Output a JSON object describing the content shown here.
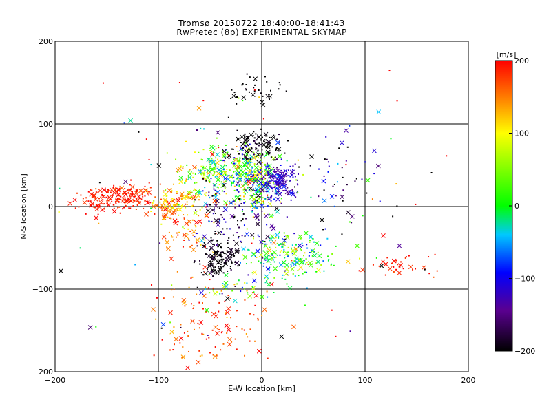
{
  "title_line1": "Tromsø 20150722 18:40:00–18:41:43",
  "title_line2": "RwPretec (8p) EXPERIMENTAL SKYMAP",
  "chart_data": {
    "type": "scatter",
    "xlabel": "E-W location [km]",
    "ylabel": "N-S location [km]",
    "xlim": [
      -200,
      200
    ],
    "ylim": [
      -200,
      200
    ],
    "x_ticks": [
      -200,
      -100,
      0,
      100,
      200
    ],
    "y_ticks": [
      -200,
      -100,
      0,
      100,
      200
    ],
    "x_tick_labels": [
      "−200",
      "−100",
      "0",
      "100",
      "200"
    ],
    "y_tick_labels": [
      "−200",
      "−100",
      "0",
      "100",
      "200"
    ],
    "grid": true,
    "colorbar": {
      "unit_label": "[m/s]",
      "min": -200,
      "max": 200,
      "ticks": [
        -200,
        -100,
        0,
        100,
        200
      ],
      "tick_labels": [
        "−200",
        "−100",
        "0",
        "100",
        "200"
      ],
      "colormap": "rainbow (black-purple-blue-cyan-green-yellow-orange-red)"
    },
    "marker_types": [
      "dot",
      "x"
    ],
    "clusters": [
      {
        "x": -140,
        "y": 10,
        "sx": 18,
        "sy": 9,
        "n": 180,
        "v": 190,
        "dv": 15
      },
      {
        "x": -85,
        "y": 2,
        "sx": 12,
        "sy": 10,
        "n": 110,
        "v": 130,
        "dv": 30
      },
      {
        "x": -70,
        "y": -30,
        "sx": 12,
        "sy": 12,
        "n": 50,
        "v": 160,
        "dv": 30
      },
      {
        "x": -55,
        "y": 35,
        "sx": 20,
        "sy": 18,
        "n": 130,
        "v": 80,
        "dv": 60
      },
      {
        "x": -35,
        "y": 45,
        "sx": 12,
        "sy": 15,
        "n": 120,
        "v": 10,
        "dv": 60
      },
      {
        "x": -5,
        "y": 30,
        "sx": 12,
        "sy": 18,
        "n": 260,
        "v": 20,
        "dv": 80
      },
      {
        "x": 15,
        "y": 30,
        "sx": 10,
        "sy": 10,
        "n": 160,
        "v": -120,
        "dv": 20
      },
      {
        "x": -5,
        "y": 75,
        "sx": 12,
        "sy": 10,
        "n": 110,
        "v": -200,
        "dv": 15
      },
      {
        "x": -40,
        "y": -60,
        "sx": 10,
        "sy": 12,
        "n": 130,
        "v": -200,
        "dv": 15
      },
      {
        "x": 25,
        "y": -60,
        "sx": 22,
        "sy": 14,
        "n": 200,
        "v": 5,
        "dv": 60
      },
      {
        "x": -30,
        "y": -10,
        "sx": 20,
        "sy": 20,
        "n": 100,
        "v": -150,
        "dv": 50
      },
      {
        "x": -45,
        "y": -140,
        "sx": 30,
        "sy": 25,
        "n": 120,
        "v": 175,
        "dv": 25
      },
      {
        "x": -25,
        "y": -95,
        "sx": 20,
        "sy": 10,
        "n": 40,
        "v": 20,
        "dv": 80
      },
      {
        "x": 135,
        "y": -70,
        "sx": 18,
        "sy": 10,
        "n": 35,
        "v": 190,
        "dv": 10
      },
      {
        "x": -10,
        "y": 140,
        "sx": 15,
        "sy": 8,
        "n": 35,
        "v": -200,
        "dv": 5
      },
      {
        "x": 70,
        "y": 30,
        "sx": 25,
        "sy": 25,
        "n": 40,
        "v": -150,
        "dv": 60
      },
      {
        "x": 0,
        "y": 0,
        "sx": 90,
        "sy": 90,
        "n": 150,
        "v": 0,
        "dv": 200
      }
    ],
    "point_model": "Points are drawn around the listed cluster centres (x, y in km) with spread sx, sy in km; n is the point count, v the typical line-of-sight velocity in m/s and dv its spread. Roughly a quarter of the points are plotted as 'x' crosses and the rest as small dots, coloured by velocity on the colour bar."
  }
}
